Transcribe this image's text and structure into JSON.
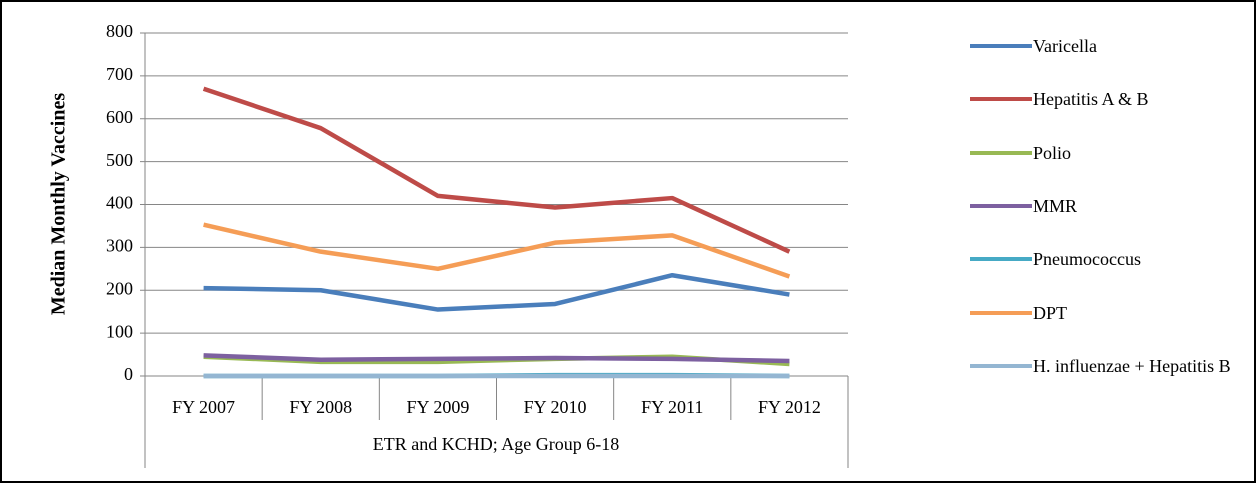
{
  "chart_data": {
    "type": "line",
    "y_label": "Median Monthly Vaccines",
    "group_label": "ETR and KCHD; Age Group 6-18",
    "categories": [
      "FY 2007",
      "FY 2008",
      "FY 2009",
      "FY 2010",
      "FY 2011",
      "FY 2012"
    ],
    "series": [
      {
        "name": "Varicella",
        "color": "#4a7ebb",
        "values": [
          205,
          200,
          155,
          168,
          235,
          190
        ]
      },
      {
        "name": "Hepatitis A & B",
        "color": "#be4b48",
        "values": [
          670,
          578,
          420,
          393,
          415,
          290
        ]
      },
      {
        "name": "Polio",
        "color": "#98b954",
        "values": [
          45,
          33,
          33,
          40,
          45,
          28
        ]
      },
      {
        "name": "MMR",
        "color": "#7d60a0",
        "values": [
          48,
          38,
          40,
          42,
          40,
          35
        ]
      },
      {
        "name": "Pneumococcus",
        "color": "#46aac5",
        "values": [
          0,
          0,
          0,
          2,
          2,
          0
        ]
      },
      {
        "name": "DPT",
        "color": "#f59d56",
        "values": [
          353,
          290,
          250,
          311,
          328,
          232
        ]
      },
      {
        "name": "H. influenzae + Hepatitis B",
        "color": "#94b6d2",
        "values": [
          0,
          0,
          0,
          0,
          0,
          0
        ]
      }
    ],
    "ylim": [
      0,
      800
    ],
    "yticks": [
      0,
      100,
      200,
      300,
      400,
      500,
      600,
      700,
      800
    ],
    "grid": true
  }
}
